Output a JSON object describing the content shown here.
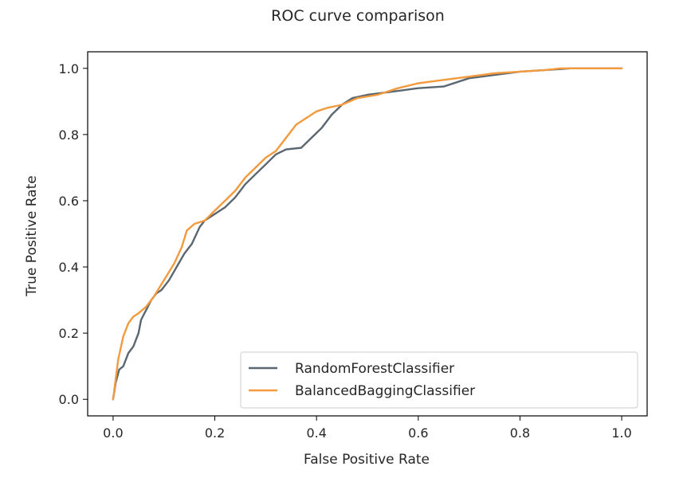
{
  "chart_data": {
    "type": "line",
    "title": "ROC curve comparison",
    "xlabel": "False Positive Rate",
    "ylabel": "True Positive Rate",
    "xlim": [
      -0.05,
      1.05
    ],
    "ylim": [
      -0.05,
      1.05
    ],
    "xticks": [
      {
        "value": 0.0,
        "label": "0.0"
      },
      {
        "value": 0.2,
        "label": "0.2"
      },
      {
        "value": 0.4,
        "label": "0.4"
      },
      {
        "value": 0.6,
        "label": "0.6"
      },
      {
        "value": 0.8,
        "label": "0.8"
      },
      {
        "value": 1.0,
        "label": "1.0"
      }
    ],
    "yticks": [
      {
        "value": 0.0,
        "label": "0.0"
      },
      {
        "value": 0.2,
        "label": "0.2"
      },
      {
        "value": 0.4,
        "label": "0.4"
      },
      {
        "value": 0.6,
        "label": "0.6"
      },
      {
        "value": 0.8,
        "label": "0.8"
      },
      {
        "value": 1.0,
        "label": "1.0"
      }
    ],
    "grid": false,
    "legend_position": "lower-right",
    "series": [
      {
        "name": "RandomForestClassifier",
        "color": "#5a6670",
        "points": [
          [
            0.0,
            0.0
          ],
          [
            0.005,
            0.05
          ],
          [
            0.012,
            0.09
          ],
          [
            0.02,
            0.1
          ],
          [
            0.03,
            0.14
          ],
          [
            0.04,
            0.16
          ],
          [
            0.05,
            0.2
          ],
          [
            0.055,
            0.24
          ],
          [
            0.065,
            0.27
          ],
          [
            0.075,
            0.3
          ],
          [
            0.085,
            0.32
          ],
          [
            0.095,
            0.33
          ],
          [
            0.11,
            0.36
          ],
          [
            0.125,
            0.4
          ],
          [
            0.14,
            0.44
          ],
          [
            0.155,
            0.47
          ],
          [
            0.17,
            0.52
          ],
          [
            0.18,
            0.54
          ],
          [
            0.2,
            0.56
          ],
          [
            0.22,
            0.58
          ],
          [
            0.24,
            0.61
          ],
          [
            0.26,
            0.65
          ],
          [
            0.28,
            0.68
          ],
          [
            0.3,
            0.71
          ],
          [
            0.32,
            0.74
          ],
          [
            0.34,
            0.755
          ],
          [
            0.37,
            0.76
          ],
          [
            0.39,
            0.79
          ],
          [
            0.41,
            0.82
          ],
          [
            0.43,
            0.86
          ],
          [
            0.45,
            0.89
          ],
          [
            0.47,
            0.91
          ],
          [
            0.5,
            0.92
          ],
          [
            0.55,
            0.93
          ],
          [
            0.6,
            0.94
          ],
          [
            0.65,
            0.945
          ],
          [
            0.7,
            0.97
          ],
          [
            0.75,
            0.98
          ],
          [
            0.8,
            0.99
          ],
          [
            0.85,
            0.995
          ],
          [
            0.9,
            1.0
          ],
          [
            1.0,
            1.0
          ]
        ]
      },
      {
        "name": "BalancedBaggingClassifier",
        "color": "#f39a3e",
        "points": [
          [
            0.0,
            0.0
          ],
          [
            0.005,
            0.06
          ],
          [
            0.01,
            0.12
          ],
          [
            0.02,
            0.19
          ],
          [
            0.03,
            0.23
          ],
          [
            0.04,
            0.25
          ],
          [
            0.05,
            0.26
          ],
          [
            0.065,
            0.28
          ],
          [
            0.08,
            0.31
          ],
          [
            0.1,
            0.36
          ],
          [
            0.12,
            0.41
          ],
          [
            0.135,
            0.46
          ],
          [
            0.145,
            0.51
          ],
          [
            0.16,
            0.53
          ],
          [
            0.18,
            0.54
          ],
          [
            0.2,
            0.57
          ],
          [
            0.22,
            0.6
          ],
          [
            0.24,
            0.63
          ],
          [
            0.26,
            0.67
          ],
          [
            0.28,
            0.7
          ],
          [
            0.3,
            0.73
          ],
          [
            0.32,
            0.75
          ],
          [
            0.34,
            0.79
          ],
          [
            0.36,
            0.83
          ],
          [
            0.38,
            0.85
          ],
          [
            0.4,
            0.87
          ],
          [
            0.42,
            0.88
          ],
          [
            0.45,
            0.89
          ],
          [
            0.48,
            0.91
          ],
          [
            0.52,
            0.92
          ],
          [
            0.56,
            0.94
          ],
          [
            0.6,
            0.955
          ],
          [
            0.65,
            0.965
          ],
          [
            0.7,
            0.975
          ],
          [
            0.75,
            0.985
          ],
          [
            0.8,
            0.99
          ],
          [
            0.85,
            0.995
          ],
          [
            0.88,
            1.0
          ],
          [
            1.0,
            1.0
          ]
        ]
      }
    ]
  }
}
